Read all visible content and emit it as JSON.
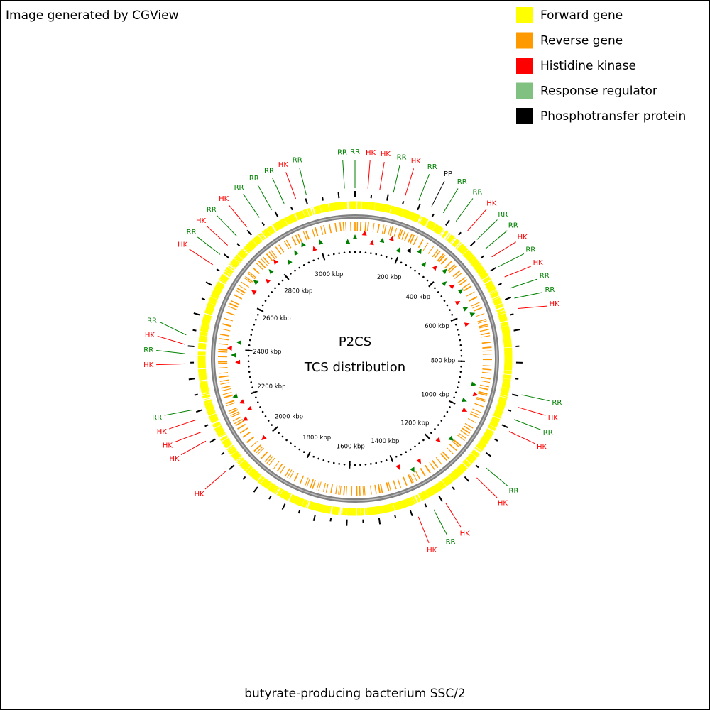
{
  "header": {
    "text": "Image generated by CGView"
  },
  "legend": [
    {
      "label": "Forward gene",
      "color": "#ffff00"
    },
    {
      "label": "Reverse gene",
      "color": "#ff9900"
    },
    {
      "label": "Histidine kinase",
      "color": "#ff0000"
    },
    {
      "label": "Response regulator",
      "color": "#80c080"
    },
    {
      "label": "Phosphotransfer protein",
      "color": "#000000"
    }
  ],
  "center": {
    "title": "P2CS",
    "subtitle": "TCS distribution"
  },
  "footer": {
    "text": "butyrate-producing bacterium SSC/2"
  },
  "map": {
    "genome_length_kbp": 3150,
    "ticks": [
      {
        "value": 200,
        "label": "200 kbp"
      },
      {
        "value": 400,
        "label": "400 kbp"
      },
      {
        "value": 600,
        "label": "600 kbp"
      },
      {
        "value": 800,
        "label": "800 kbp"
      },
      {
        "value": 1000,
        "label": "1000 kbp"
      },
      {
        "value": 1200,
        "label": "1200 kbp"
      },
      {
        "value": 1400,
        "label": "1400 kbp"
      },
      {
        "value": 1600,
        "label": "1600 kbp"
      },
      {
        "value": 1800,
        "label": "1800 kbp"
      },
      {
        "value": 2000,
        "label": "2000 kbp"
      },
      {
        "value": 2200,
        "label": "2200 kbp"
      },
      {
        "value": 2400,
        "label": "2400 kbp"
      },
      {
        "value": 2600,
        "label": "2600 kbp"
      },
      {
        "value": 2800,
        "label": "2800 kbp"
      },
      {
        "value": 3000,
        "label": "3000 kbp"
      }
    ],
    "features": [
      {
        "label": "RR",
        "color": "#008000",
        "position_kbp": 3119
      },
      {
        "label": "RR",
        "color": "#008000",
        "position_kbp": 0
      },
      {
        "label": "HK",
        "color": "#ff0000",
        "position_kbp": 38
      },
      {
        "label": "HK",
        "color": "#ff0000",
        "position_kbp": 73
      },
      {
        "label": "RR",
        "color": "#008000",
        "position_kbp": 114
      },
      {
        "label": "HK",
        "color": "#ff0000",
        "position_kbp": 150
      },
      {
        "label": "RR",
        "color": "#008000",
        "position_kbp": 192
      },
      {
        "label": "PP",
        "color": "#000000",
        "position_kbp": 234
      },
      {
        "label": "RR",
        "color": "#008000",
        "position_kbp": 273
      },
      {
        "label": "RR",
        "color": "#008000",
        "position_kbp": 318
      },
      {
        "label": "HK",
        "color": "#ff0000",
        "position_kbp": 362
      },
      {
        "label": "RR",
        "color": "#008000",
        "position_kbp": 400
      },
      {
        "label": "RR",
        "color": "#008000",
        "position_kbp": 437
      },
      {
        "label": "HK",
        "color": "#ff0000",
        "position_kbp": 467
      },
      {
        "label": "RR",
        "color": "#008000",
        "position_kbp": 502
      },
      {
        "label": "HK",
        "color": "#ff0000",
        "position_kbp": 537
      },
      {
        "label": "RR",
        "color": "#008000",
        "position_kbp": 574
      },
      {
        "label": "RR",
        "color": "#008000",
        "position_kbp": 606
      },
      {
        "label": "HK",
        "color": "#ff0000",
        "position_kbp": 638
      },
      {
        "label": "RR",
        "color": "#008000",
        "position_kbp": 895
      },
      {
        "label": "HK",
        "color": "#ff0000",
        "position_kbp": 933
      },
      {
        "label": "RR",
        "color": "#008000",
        "position_kbp": 971
      },
      {
        "label": "HK",
        "color": "#ff0000",
        "position_kbp": 1009
      },
      {
        "label": "RR",
        "color": "#008000",
        "position_kbp": 1136
      },
      {
        "label": "HK",
        "color": "#ff0000",
        "position_kbp": 1176
      },
      {
        "label": "HK",
        "color": "#ff0000",
        "position_kbp": 1294
      },
      {
        "label": "RR",
        "color": "#008000",
        "position_kbp": 1334
      },
      {
        "label": "HK",
        "color": "#ff0000",
        "position_kbp": 1384
      },
      {
        "label": "HK",
        "color": "#ff0000",
        "position_kbp": 2003
      },
      {
        "label": "HK",
        "color": "#ff0000",
        "position_kbp": 2109
      },
      {
        "label": "HK",
        "color": "#ff0000",
        "position_kbp": 2139
      },
      {
        "label": "HK",
        "color": "#ff0000",
        "position_kbp": 2178
      },
      {
        "label": "RR",
        "color": "#008000",
        "position_kbp": 2209
      },
      {
        "label": "HK",
        "color": "#ff0000",
        "position_kbp": 2347
      },
      {
        "label": "RR",
        "color": "#008000",
        "position_kbp": 2377
      },
      {
        "label": "HK",
        "color": "#ff0000",
        "position_kbp": 2404
      },
      {
        "label": "RR",
        "color": "#008000",
        "position_kbp": 2432
      },
      {
        "label": "HK",
        "color": "#ff0000",
        "position_kbp": 2655
      },
      {
        "label": "RR",
        "color": "#008000",
        "position_kbp": 2692
      },
      {
        "label": "HK",
        "color": "#ff0000",
        "position_kbp": 2727
      },
      {
        "label": "RR",
        "color": "#008000",
        "position_kbp": 2765
      },
      {
        "label": "HK",
        "color": "#ff0000",
        "position_kbp": 2805
      },
      {
        "label": "RR",
        "color": "#008000",
        "position_kbp": 2851
      },
      {
        "label": "RR",
        "color": "#008000",
        "position_kbp": 2894
      },
      {
        "label": "RR",
        "color": "#008000",
        "position_kbp": 2935
      },
      {
        "label": "HK",
        "color": "#ff0000",
        "position_kbp": 2972
      },
      {
        "label": "RR",
        "color": "#008000",
        "position_kbp": 3005
      }
    ]
  }
}
